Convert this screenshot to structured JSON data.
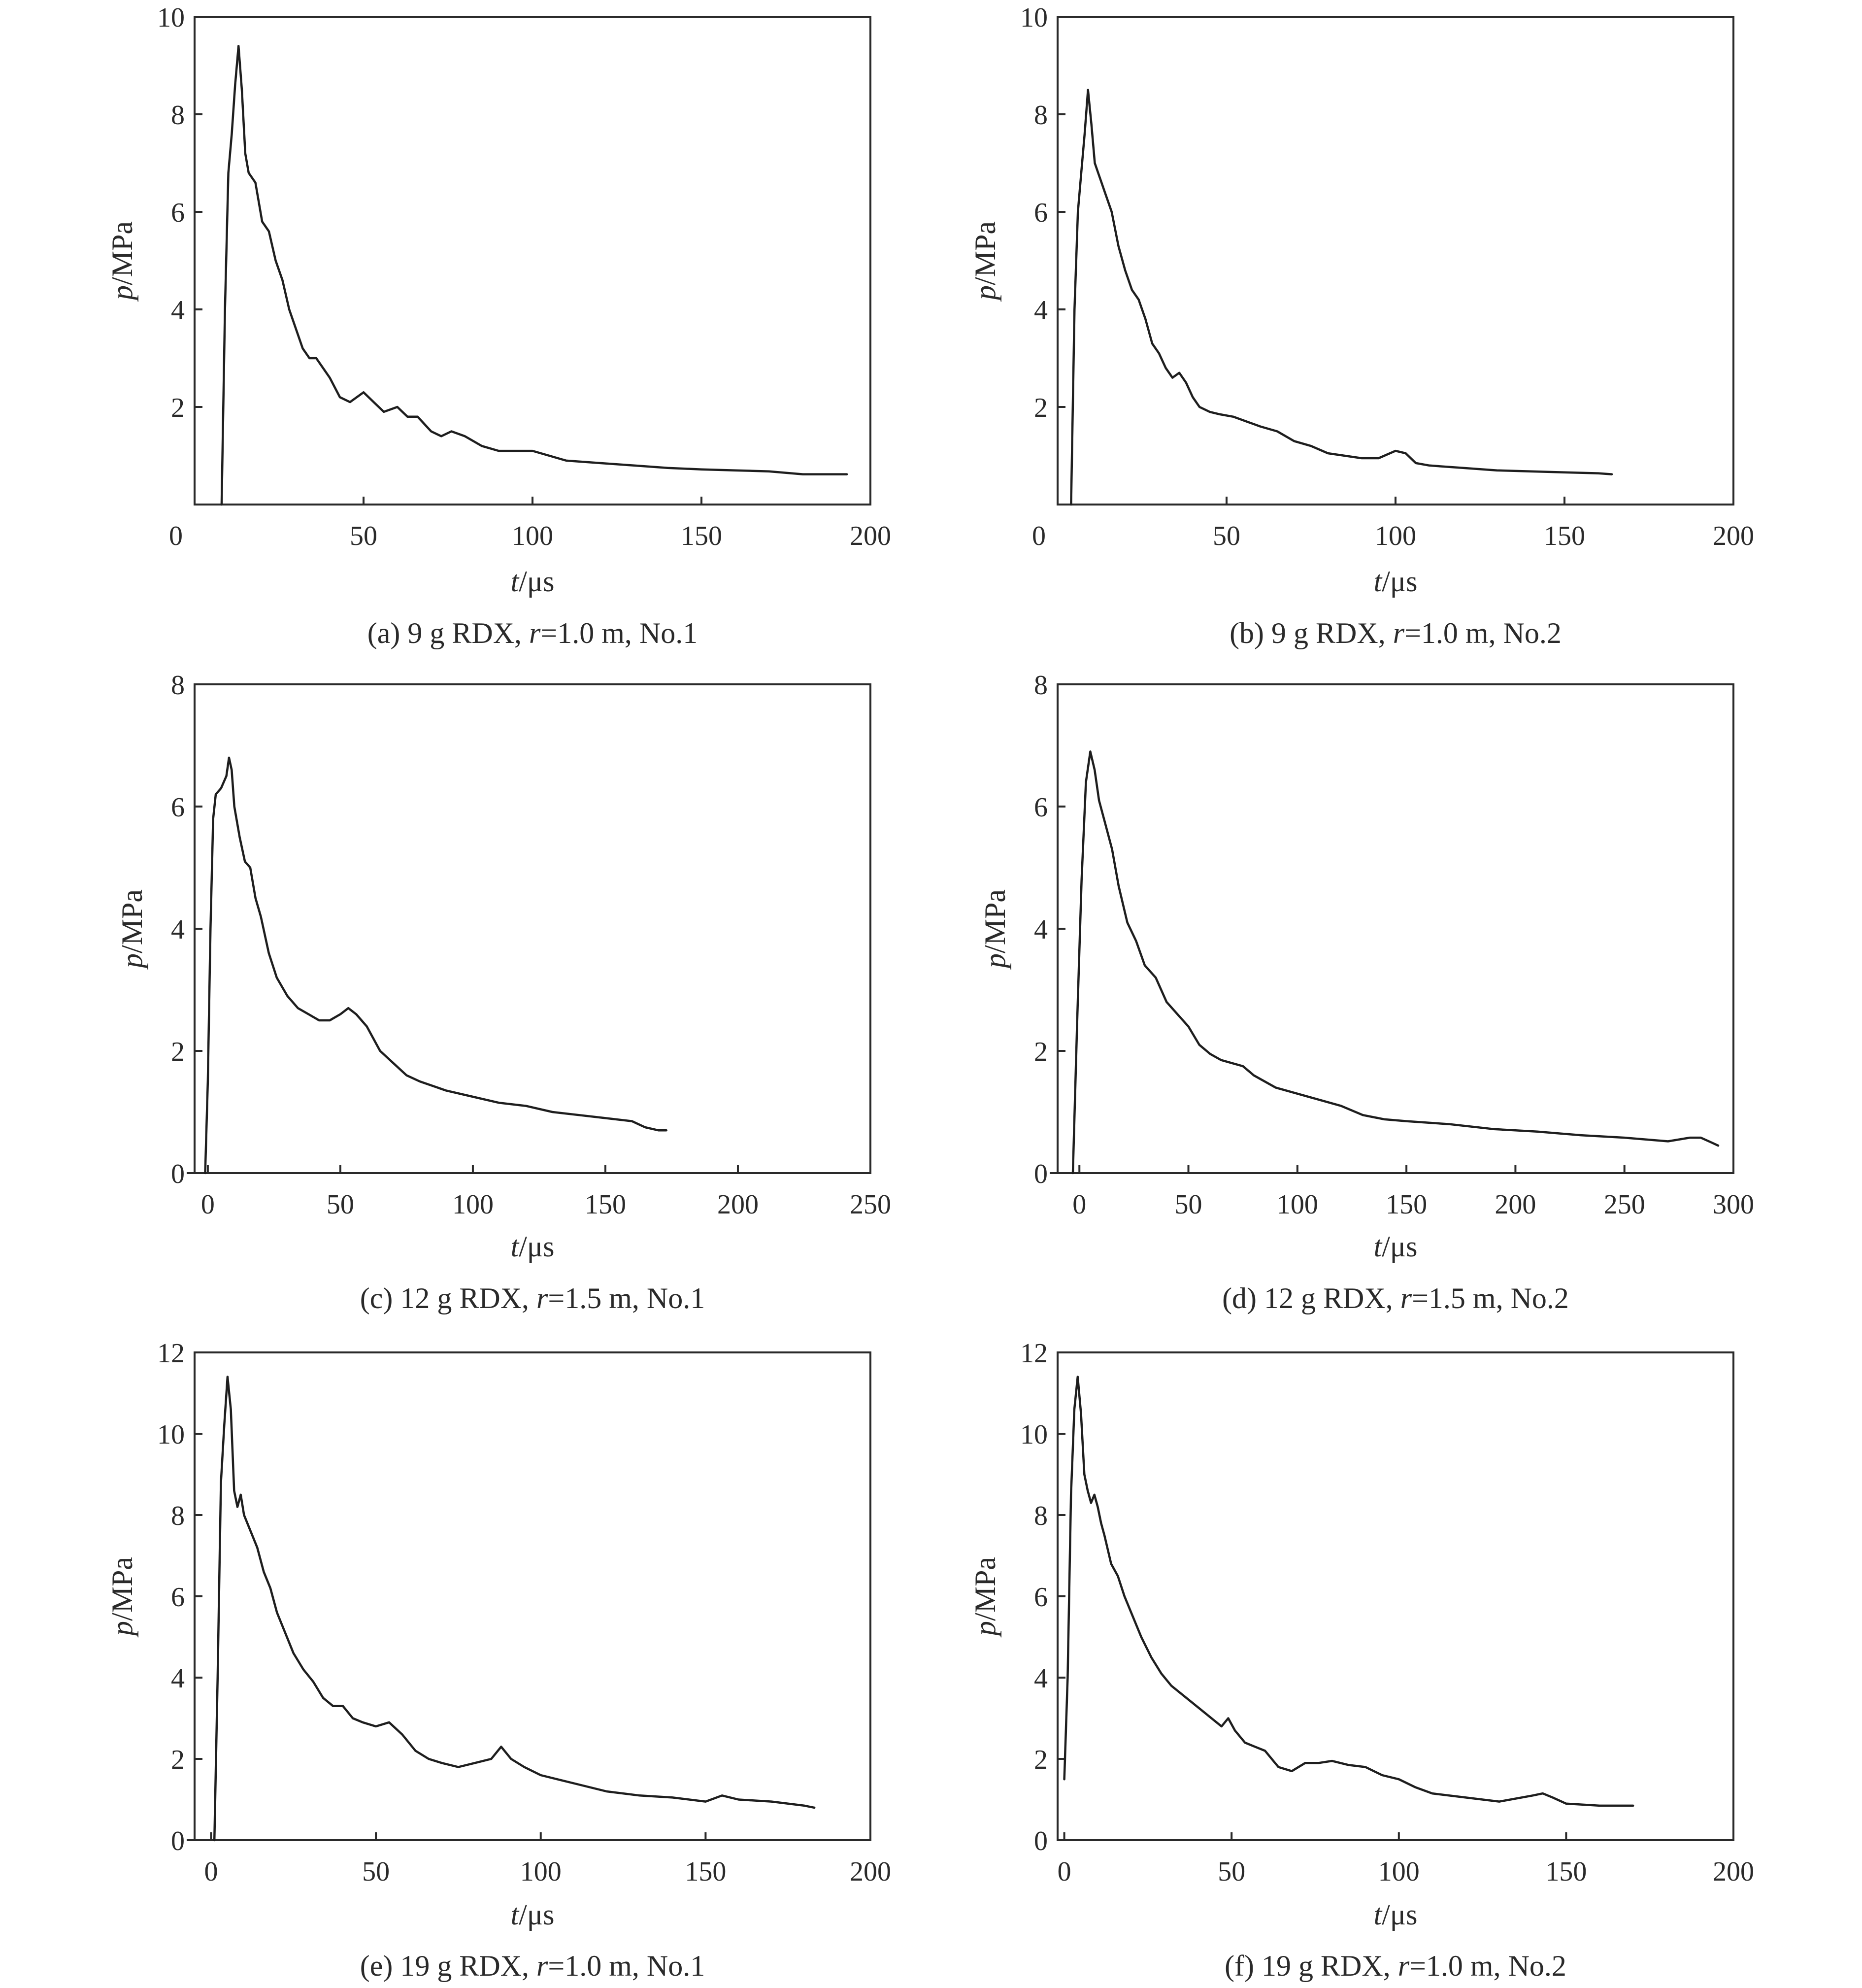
{
  "chart_data": [
    {
      "id": "a",
      "type": "line",
      "caption": {
        "pre": "(a) 9 g RDX, ",
        "italic": "r",
        "post": "=1.0 m, No.1"
      },
      "xlabel": {
        "italic": "t",
        "unit": "/μs"
      },
      "ylabel": {
        "italic": "p",
        "unit": "/MPa"
      },
      "xlim": [
        0,
        200
      ],
      "ylim": [
        0,
        10
      ],
      "xticks": [
        0,
        50,
        100,
        150,
        200
      ],
      "yticks": [
        2,
        4,
        6,
        8,
        10
      ],
      "yticks_outside": [],
      "series": [
        {
          "x": [
            8,
            9,
            10,
            11,
            12,
            13,
            14,
            15,
            16,
            18,
            20,
            22,
            24,
            26,
            28,
            30,
            32,
            34,
            36,
            38,
            40,
            43,
            46,
            50,
            53,
            56,
            60,
            63,
            66,
            70,
            73,
            76,
            80,
            85,
            90,
            95,
            100,
            105,
            110,
            120,
            130,
            140,
            150,
            160,
            170,
            180,
            193
          ],
          "y": [
            0,
            4,
            6.8,
            7.6,
            8.6,
            9.4,
            8.5,
            7.2,
            6.8,
            6.6,
            5.8,
            5.6,
            5.0,
            4.6,
            4.0,
            3.6,
            3.2,
            3.0,
            3.0,
            2.8,
            2.6,
            2.2,
            2.1,
            2.3,
            2.1,
            1.9,
            2.0,
            1.8,
            1.8,
            1.5,
            1.4,
            1.5,
            1.4,
            1.2,
            1.1,
            1.1,
            1.1,
            1.0,
            0.9,
            0.85,
            0.8,
            0.75,
            0.72,
            0.7,
            0.68,
            0.62,
            0.62
          ]
        }
      ]
    },
    {
      "id": "b",
      "type": "line",
      "caption": {
        "pre": "(b) 9 g RDX, ",
        "italic": "r",
        "post": "=1.0 m, No.2"
      },
      "xlabel": {
        "italic": "t",
        "unit": "/μs"
      },
      "ylabel": {
        "italic": "p",
        "unit": "/MPa"
      },
      "xlim": [
        0,
        200
      ],
      "ylim": [
        0,
        10
      ],
      "xticks": [
        0,
        50,
        100,
        150,
        200
      ],
      "yticks": [
        2,
        4,
        6,
        8,
        10
      ],
      "yticks_outside": [],
      "series": [
        {
          "x": [
            4,
            5,
            6,
            7,
            8,
            9,
            10,
            11,
            12,
            13,
            14,
            16,
            18,
            20,
            22,
            24,
            26,
            28,
            30,
            32,
            34,
            36,
            38,
            40,
            42,
            45,
            48,
            52,
            56,
            60,
            65,
            70,
            75,
            80,
            85,
            90,
            95,
            100,
            103,
            106,
            110,
            120,
            130,
            140,
            150,
            160,
            164
          ],
          "y": [
            0,
            4,
            6.0,
            6.8,
            7.6,
            8.5,
            7.8,
            7.0,
            6.8,
            6.6,
            6.4,
            6.0,
            5.3,
            4.8,
            4.4,
            4.2,
            3.8,
            3.3,
            3.1,
            2.8,
            2.6,
            2.7,
            2.5,
            2.2,
            2.0,
            1.9,
            1.85,
            1.8,
            1.7,
            1.6,
            1.5,
            1.3,
            1.2,
            1.05,
            1.0,
            0.95,
            0.95,
            1.1,
            1.05,
            0.85,
            0.8,
            0.75,
            0.7,
            0.68,
            0.66,
            0.64,
            0.62
          ]
        }
      ]
    },
    {
      "id": "c",
      "type": "line",
      "caption": {
        "pre": "(c) 12 g RDX, ",
        "italic": "r",
        "post": "=1.5 m, No.1"
      },
      "xlabel": {
        "italic": "t",
        "unit": "/μs"
      },
      "ylabel": {
        "italic": "p",
        "unit": "/MPa"
      },
      "xlim": [
        -5,
        250
      ],
      "ylim": [
        0,
        8
      ],
      "xticks": [
        0,
        50,
        100,
        150,
        200,
        250
      ],
      "yticks": [
        0,
        2,
        4,
        6,
        8
      ],
      "yticks_outside": [
        0
      ],
      "series": [
        {
          "x": [
            -1,
            0,
            1,
            2,
            3,
            5,
            7,
            8,
            9,
            10,
            12,
            14,
            16,
            18,
            20,
            23,
            26,
            30,
            34,
            38,
            42,
            46,
            50,
            53,
            56,
            60,
            65,
            70,
            75,
            80,
            90,
            100,
            110,
            120,
            130,
            140,
            150,
            160,
            165,
            170,
            173
          ],
          "y": [
            0,
            1.5,
            4,
            5.8,
            6.2,
            6.3,
            6.5,
            6.8,
            6.6,
            6.0,
            5.5,
            5.1,
            5.0,
            4.5,
            4.2,
            3.6,
            3.2,
            2.9,
            2.7,
            2.6,
            2.5,
            2.5,
            2.6,
            2.7,
            2.6,
            2.4,
            2.0,
            1.8,
            1.6,
            1.5,
            1.35,
            1.25,
            1.15,
            1.1,
            1.0,
            0.95,
            0.9,
            0.85,
            0.75,
            0.7,
            0.7
          ]
        }
      ]
    },
    {
      "id": "d",
      "type": "line",
      "caption": {
        "pre": "(d) 12 g RDX, ",
        "italic": "r",
        "post": "=1.5 m, No.2"
      },
      "xlabel": {
        "italic": "t",
        "unit": "/μs"
      },
      "ylabel": {
        "italic": "p",
        "unit": "/MPa"
      },
      "xlim": [
        -10,
        300
      ],
      "ylim": [
        0,
        8
      ],
      "xticks": [
        0,
        50,
        100,
        150,
        200,
        250,
        300
      ],
      "yticks": [
        0,
        2,
        4,
        6,
        8
      ],
      "yticks_outside": [
        0
      ],
      "series": [
        {
          "x": [
            -3,
            -1,
            1,
            3,
            5,
            7,
            9,
            12,
            15,
            18,
            22,
            26,
            30,
            35,
            40,
            45,
            50,
            55,
            60,
            65,
            70,
            75,
            80,
            90,
            100,
            110,
            120,
            130,
            140,
            150,
            170,
            190,
            210,
            230,
            250,
            270,
            280,
            285,
            290,
            293
          ],
          "y": [
            0,
            2.5,
            4.8,
            6.4,
            6.9,
            6.6,
            6.1,
            5.7,
            5.3,
            4.7,
            4.1,
            3.8,
            3.4,
            3.2,
            2.8,
            2.6,
            2.4,
            2.1,
            1.95,
            1.85,
            1.8,
            1.75,
            1.6,
            1.4,
            1.3,
            1.2,
            1.1,
            0.95,
            0.88,
            0.85,
            0.8,
            0.72,
            0.68,
            0.62,
            0.58,
            0.52,
            0.58,
            0.58,
            0.5,
            0.45
          ]
        }
      ]
    },
    {
      "id": "e",
      "type": "line",
      "caption": {
        "pre": "(e) 19 g RDX, ",
        "italic": "r",
        "post": "=1.0 m, No.1"
      },
      "xlabel": {
        "italic": "t",
        "unit": "/μs"
      },
      "ylabel": {
        "italic": "p",
        "unit": "/MPa"
      },
      "xlim": [
        -5,
        200
      ],
      "ylim": [
        0,
        12
      ],
      "xticks": [
        0,
        50,
        100,
        150,
        200
      ],
      "yticks": [
        0,
        2,
        4,
        6,
        8,
        10,
        12
      ],
      "yticks_outside": [
        0
      ],
      "series": [
        {
          "x": [
            1,
            2,
            3,
            4,
            5,
            6,
            7,
            8,
            9,
            10,
            11,
            12,
            14,
            16,
            18,
            20,
            22,
            25,
            28,
            31,
            34,
            37,
            40,
            43,
            46,
            50,
            54,
            58,
            62,
            66,
            70,
            75,
            80,
            85,
            88,
            91,
            95,
            100,
            110,
            120,
            130,
            140,
            150,
            155,
            160,
            170,
            180,
            183
          ],
          "y": [
            0,
            4,
            8.8,
            10.2,
            11.4,
            10.6,
            8.6,
            8.2,
            8.5,
            8.0,
            7.8,
            7.6,
            7.2,
            6.6,
            6.2,
            5.6,
            5.2,
            4.6,
            4.2,
            3.9,
            3.5,
            3.3,
            3.3,
            3.0,
            2.9,
            2.8,
            2.9,
            2.6,
            2.2,
            2.0,
            1.9,
            1.8,
            1.9,
            2.0,
            2.3,
            2.0,
            1.8,
            1.6,
            1.4,
            1.2,
            1.1,
            1.05,
            0.95,
            1.1,
            1.0,
            0.95,
            0.85,
            0.8
          ]
        }
      ]
    },
    {
      "id": "f",
      "type": "line",
      "caption": {
        "pre": "(f) 19 g RDX, ",
        "italic": "r",
        "post": "=1.0 m, No.2"
      },
      "xlabel": {
        "italic": "t",
        "unit": "/μs"
      },
      "ylabel": {
        "italic": "p",
        "unit": "/MPa"
      },
      "xlim": [
        -2,
        200
      ],
      "ylim": [
        0,
        12
      ],
      "xticks": [
        0,
        50,
        100,
        150,
        200
      ],
      "yticks": [
        0,
        2,
        4,
        6,
        8,
        10,
        12
      ],
      "yticks_outside": [],
      "series": [
        {
          "x": [
            0,
            1,
            2,
            3,
            4,
            5,
            6,
            7,
            8,
            9,
            10,
            11,
            12,
            14,
            16,
            18,
            20,
            23,
            26,
            29,
            32,
            35,
            38,
            41,
            44,
            47,
            49,
            51,
            54,
            57,
            60,
            64,
            68,
            72,
            76,
            80,
            85,
            90,
            95,
            100,
            105,
            110,
            120,
            130,
            140,
            143,
            146,
            150,
            160,
            170
          ],
          "y": [
            1.5,
            4.0,
            8.5,
            10.6,
            11.4,
            10.5,
            9.0,
            8.6,
            8.3,
            8.5,
            8.2,
            7.8,
            7.5,
            6.8,
            6.5,
            6.0,
            5.6,
            5.0,
            4.5,
            4.1,
            3.8,
            3.6,
            3.4,
            3.2,
            3.0,
            2.8,
            3.0,
            2.7,
            2.4,
            2.3,
            2.2,
            1.8,
            1.7,
            1.9,
            1.9,
            1.95,
            1.85,
            1.8,
            1.6,
            1.5,
            1.3,
            1.15,
            1.05,
            0.95,
            1.1,
            1.15,
            1.05,
            0.9,
            0.85,
            0.85
          ]
        }
      ]
    }
  ]
}
